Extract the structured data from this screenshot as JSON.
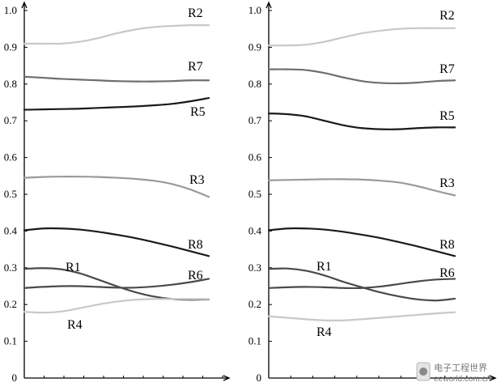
{
  "chart_data": [
    {
      "type": "line",
      "title": "",
      "xlabel": "",
      "ylabel": "",
      "ylim": [
        0,
        1.0
      ],
      "yticks": [
        "0",
        "0.1",
        "0.2",
        "0.3",
        "0.4",
        "0.5",
        "0.6",
        "0.7",
        "0.8",
        "0.9",
        "1.0"
      ],
      "x": [
        0,
        0.1,
        0.2,
        0.3,
        0.4,
        0.5,
        0.6,
        0.7,
        0.8,
        0.9,
        1.0
      ],
      "grid": false,
      "series": [
        {
          "name": "R2",
          "color": "#c8c8c8",
          "width": 2.2,
          "values": [
            0.91,
            0.91,
            0.91,
            0.915,
            0.925,
            0.938,
            0.948,
            0.955,
            0.958,
            0.96,
            0.96
          ]
        },
        {
          "name": "R7",
          "color": "#6e6e6e",
          "width": 2.2,
          "values": [
            0.82,
            0.817,
            0.814,
            0.812,
            0.81,
            0.808,
            0.807,
            0.807,
            0.808,
            0.81,
            0.81
          ]
        },
        {
          "name": "R5",
          "color": "#1a1a1a",
          "width": 2.2,
          "values": [
            0.73,
            0.731,
            0.732,
            0.733,
            0.735,
            0.737,
            0.739,
            0.742,
            0.746,
            0.753,
            0.762
          ]
        },
        {
          "name": "R3",
          "color": "#9a9a9a",
          "width": 2.2,
          "values": [
            0.545,
            0.547,
            0.548,
            0.548,
            0.547,
            0.545,
            0.542,
            0.537,
            0.528,
            0.513,
            0.493
          ]
        },
        {
          "name": "R8",
          "color": "#1a1a1a",
          "width": 2.2,
          "values": [
            0.402,
            0.407,
            0.407,
            0.404,
            0.398,
            0.39,
            0.381,
            0.37,
            0.358,
            0.345,
            0.332
          ]
        },
        {
          "name": "R1",
          "color": "#4a4a4a",
          "width": 2.2,
          "values": [
            0.297,
            0.299,
            0.296,
            0.285,
            0.268,
            0.25,
            0.234,
            0.222,
            0.215,
            0.213,
            0.214
          ]
        },
        {
          "name": "R6",
          "color": "#4a4a4a",
          "width": 2.2,
          "values": [
            0.245,
            0.248,
            0.25,
            0.25,
            0.248,
            0.246,
            0.246,
            0.249,
            0.254,
            0.261,
            0.27
          ]
        },
        {
          "name": "R4",
          "color": "#c8c8c8",
          "width": 2.2,
          "values": [
            0.18,
            0.178,
            0.181,
            0.19,
            0.2,
            0.208,
            0.213,
            0.215,
            0.215,
            0.215,
            0.215
          ]
        }
      ]
    },
    {
      "type": "line",
      "title": "",
      "xlabel": "",
      "ylabel": "",
      "ylim": [
        0,
        1.0
      ],
      "yticks": [
        "0",
        "0.1",
        "0.2",
        "0.3",
        "0.4",
        "0.5",
        "0.6",
        "0.7",
        "0.8",
        "0.9",
        "1.0"
      ],
      "x": [
        0,
        0.1,
        0.2,
        0.3,
        0.4,
        0.5,
        0.6,
        0.7,
        0.8,
        0.9,
        1.0
      ],
      "grid": false,
      "series": [
        {
          "name": "R2",
          "color": "#c8c8c8",
          "width": 2.2,
          "values": [
            0.905,
            0.905,
            0.907,
            0.915,
            0.927,
            0.938,
            0.945,
            0.95,
            0.952,
            0.952,
            0.952
          ]
        },
        {
          "name": "R7",
          "color": "#6e6e6e",
          "width": 2.2,
          "values": [
            0.84,
            0.84,
            0.838,
            0.83,
            0.818,
            0.808,
            0.803,
            0.802,
            0.804,
            0.808,
            0.81
          ]
        },
        {
          "name": "R5",
          "color": "#1a1a1a",
          "width": 2.2,
          "values": [
            0.72,
            0.718,
            0.712,
            0.7,
            0.688,
            0.68,
            0.677,
            0.677,
            0.68,
            0.682,
            0.682
          ]
        },
        {
          "name": "R3",
          "color": "#9a9a9a",
          "width": 2.2,
          "values": [
            0.538,
            0.539,
            0.54,
            0.541,
            0.541,
            0.54,
            0.537,
            0.532,
            0.522,
            0.509,
            0.497
          ]
        },
        {
          "name": "R8",
          "color": "#1a1a1a",
          "width": 2.2,
          "values": [
            0.402,
            0.407,
            0.407,
            0.404,
            0.398,
            0.39,
            0.381,
            0.37,
            0.358,
            0.345,
            0.332
          ]
        },
        {
          "name": "R1",
          "color": "#4a4a4a",
          "width": 2.2,
          "values": [
            0.297,
            0.298,
            0.292,
            0.279,
            0.262,
            0.247,
            0.233,
            0.222,
            0.214,
            0.211,
            0.216
          ]
        },
        {
          "name": "R6",
          "color": "#4a4a4a",
          "width": 2.2,
          "values": [
            0.245,
            0.247,
            0.248,
            0.247,
            0.245,
            0.245,
            0.249,
            0.256,
            0.263,
            0.268,
            0.27
          ]
        },
        {
          "name": "R4",
          "color": "#c8c8c8",
          "width": 2.2,
          "values": [
            0.168,
            0.164,
            0.16,
            0.157,
            0.157,
            0.16,
            0.164,
            0.168,
            0.172,
            0.176,
            0.179
          ]
        }
      ]
    }
  ],
  "watermark": {
    "text_main": "电子工程世界",
    "text_url": "eeworld.com.cn"
  }
}
